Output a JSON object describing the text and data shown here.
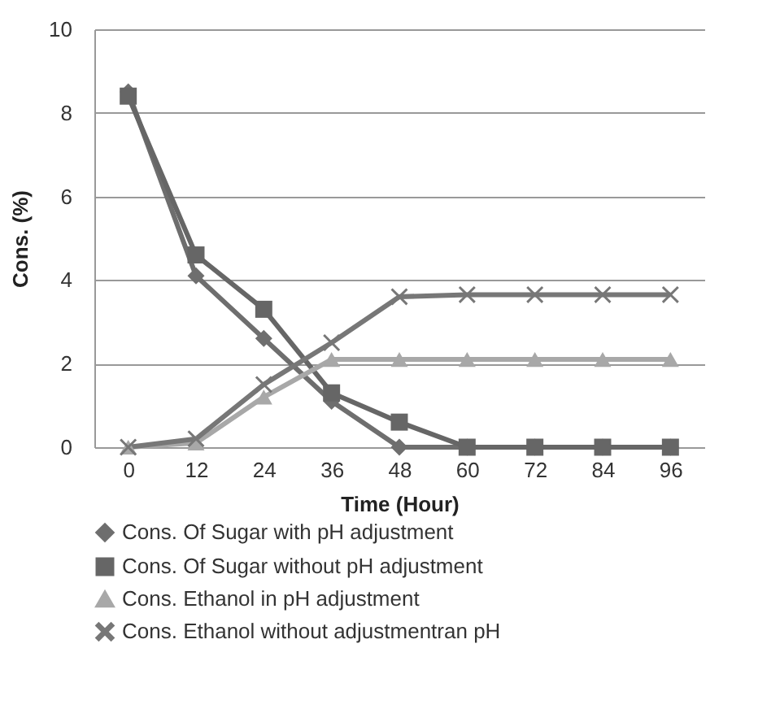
{
  "chart_data": {
    "type": "line",
    "xlabel": "Time (Hour)",
    "ylabel": "Cons.  (%)",
    "categories": [
      "0",
      "12",
      "24",
      "36",
      "48",
      "60",
      "72",
      "84",
      "96"
    ],
    "ylim": [
      0,
      10
    ],
    "yticks": [
      0,
      2,
      4,
      6,
      8,
      10
    ],
    "grid": "y",
    "legend": "bottom",
    "series": [
      {
        "name": "Cons. Of Sugar with pH adjustment",
        "color": "#6e6e6e",
        "marker": "diamond",
        "values": [
          8.5,
          4.1,
          2.6,
          1.1,
          0,
          0,
          0,
          0,
          0
        ]
      },
      {
        "name": "Cons. Of Sugar without pH adjustment",
        "color": "#666666",
        "marker": "square",
        "values": [
          8.4,
          4.6,
          3.3,
          1.3,
          0.6,
          0,
          0,
          0,
          0
        ]
      },
      {
        "name": "Cons. Ethanol in pH adjustment",
        "color": "#a8a8a8",
        "marker": "triangle",
        "values": [
          0,
          0.1,
          1.2,
          2.1,
          2.1,
          2.1,
          2.1,
          2.1,
          2.1
        ]
      },
      {
        "name": "Cons. Ethanol without adjustmentran pH",
        "color": "#777777",
        "marker": "cross",
        "values": [
          0,
          0.2,
          1.5,
          2.5,
          3.6,
          3.65,
          3.65,
          3.65,
          3.65
        ]
      }
    ]
  }
}
